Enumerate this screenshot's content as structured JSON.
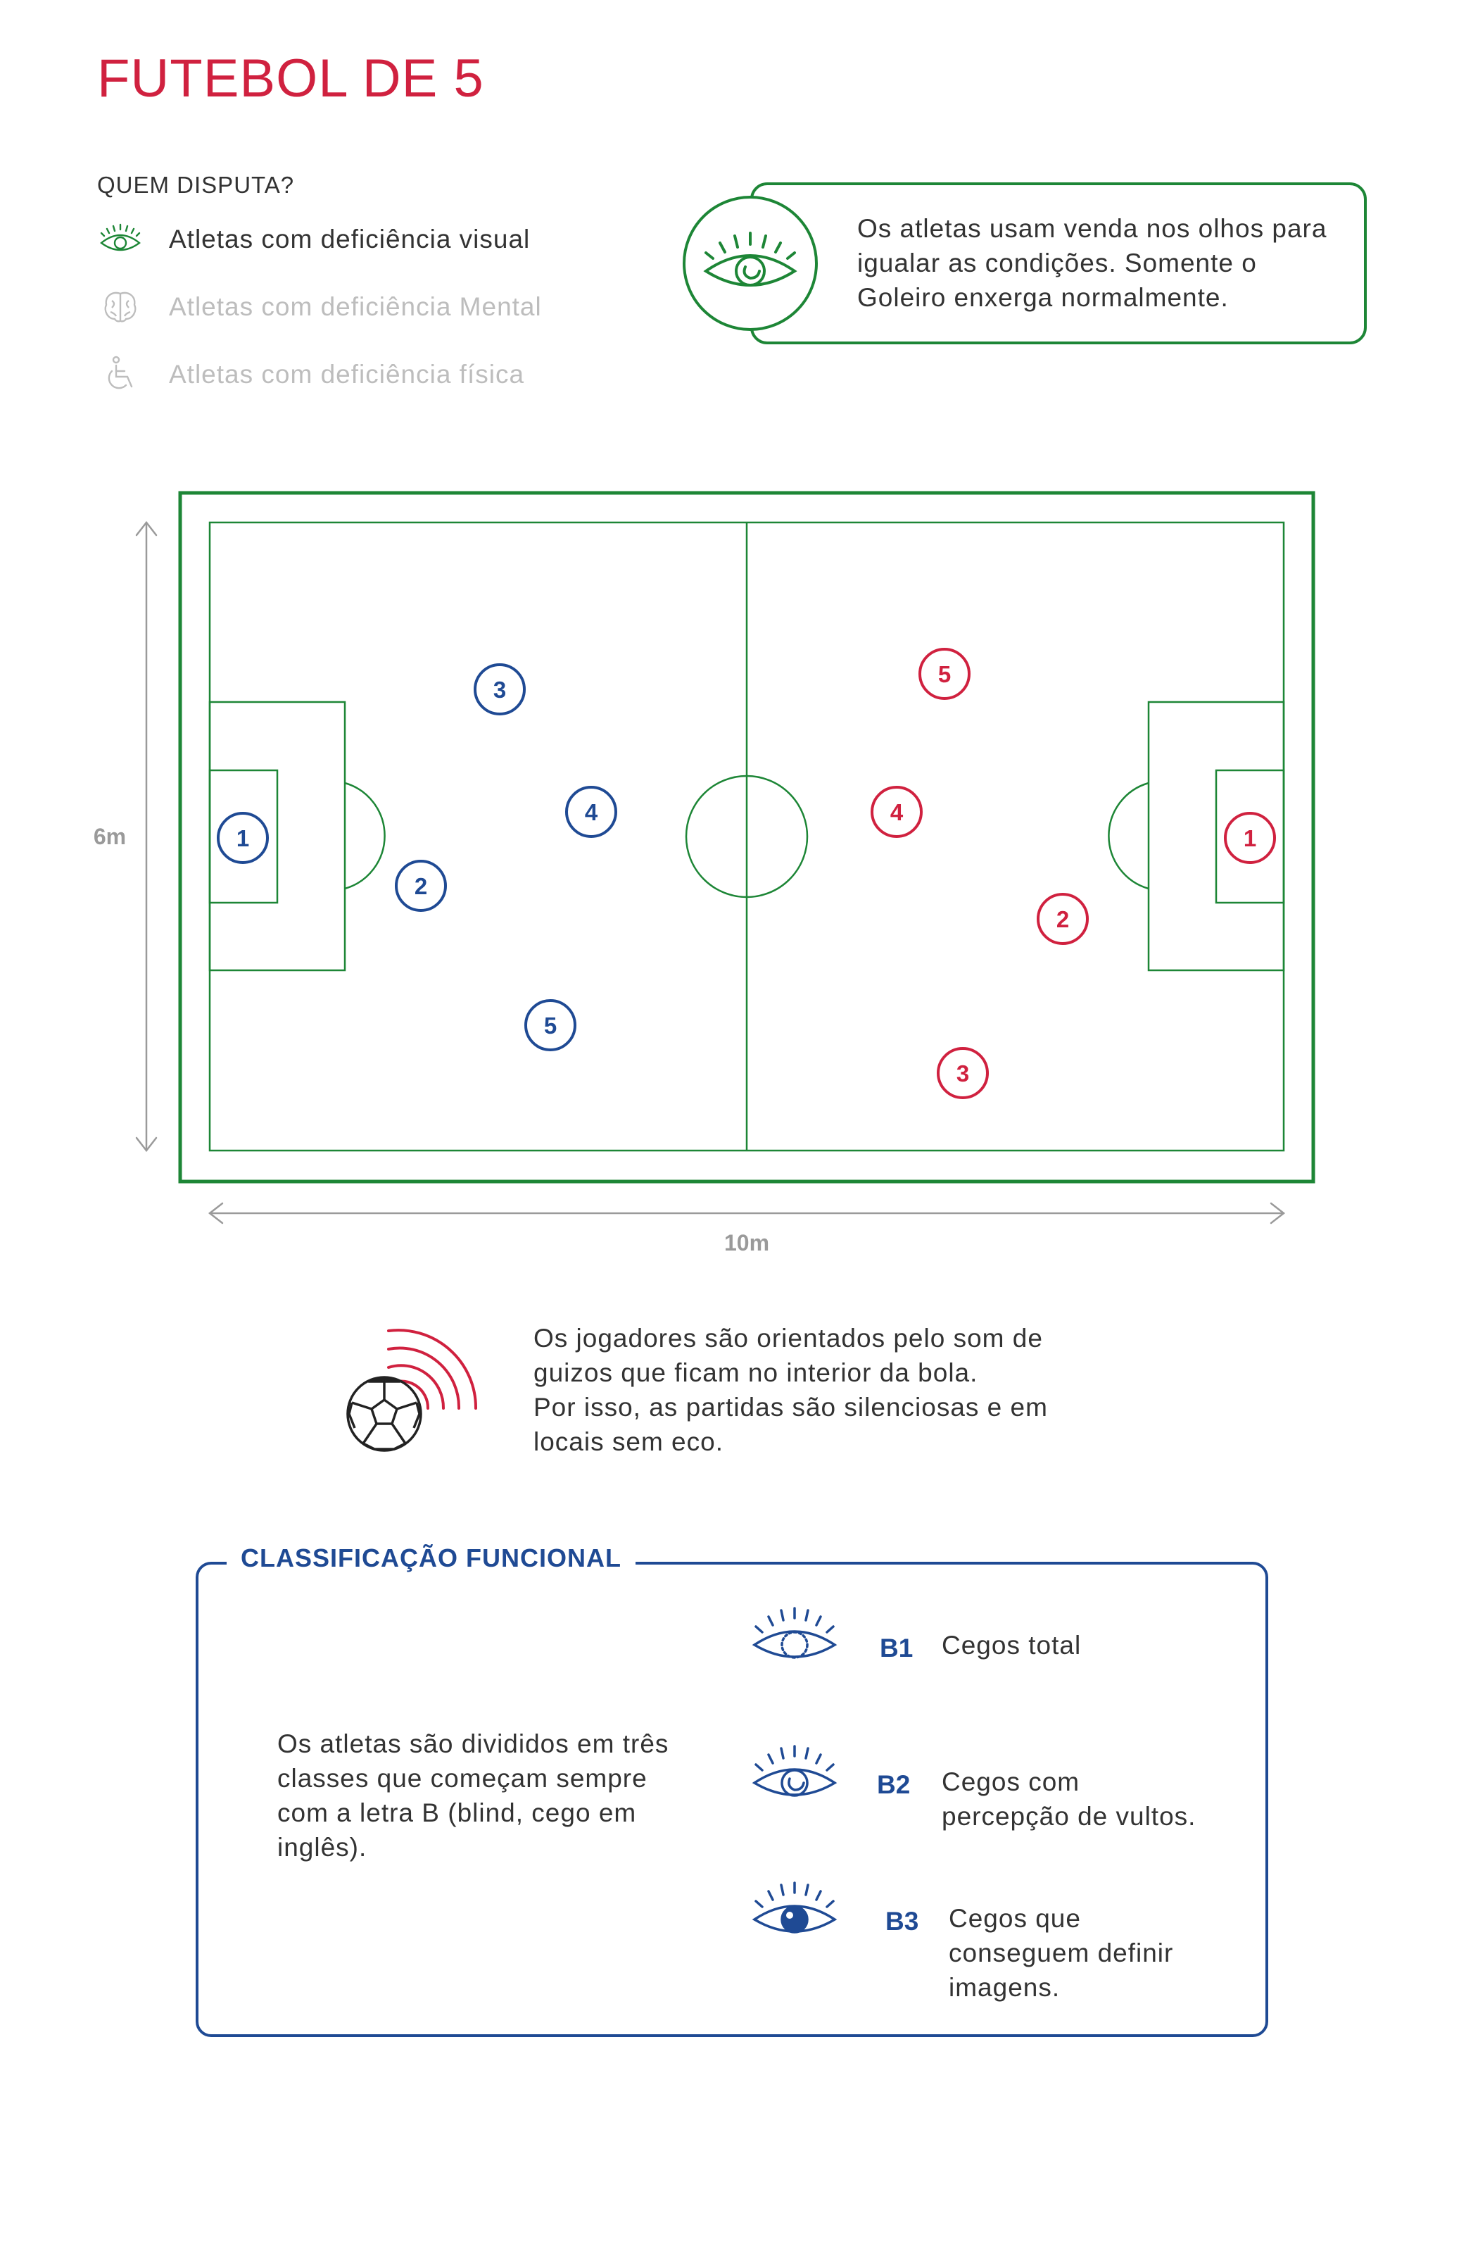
{
  "title": "FUTEBOL DE 5",
  "who": {
    "heading": "QUEM DISPUTA?",
    "categories": [
      {
        "label": "Atletas com deficiência visual",
        "icon": "eye-icon",
        "active": true
      },
      {
        "label": "Atletas com deficiência Mental",
        "icon": "brain-icon",
        "active": false
      },
      {
        "label": "Atletas com deficiência física",
        "icon": "wheelchair-icon",
        "active": false
      }
    ]
  },
  "info": {
    "text": "Os atletas usam venda nos olhos para igualar as condições. Somente o Goleiro enxerga normalmente."
  },
  "field": {
    "height_label": "6m",
    "width_label": "10m",
    "blue_players": [
      "1",
      "2",
      "3",
      "4",
      "5"
    ],
    "red_players": [
      "1",
      "2",
      "3",
      "4",
      "5"
    ]
  },
  "ball": {
    "lines": [
      "Os jogadores são orientados pelo som de",
      "guizos que ficam no interior da bola.",
      "Por isso, as partidas são silenciosas e em",
      "locais sem eco."
    ]
  },
  "classification": {
    "heading": "CLASSIFICAÇÃO FUNCIONAL",
    "description": "Os atletas são divididos em três classes que começam sempre com a letra B (blind, cego em inglês).",
    "classes": [
      {
        "code": "B1",
        "label_lines": [
          "Cegos total"
        ]
      },
      {
        "code": "B2",
        "label_lines": [
          "Cegos com",
          "percepção de vultos."
        ]
      },
      {
        "code": "B3",
        "label_lines": [
          "Cegos que",
          "conseguem definir",
          "imagens."
        ]
      }
    ]
  },
  "colors": {
    "title": "#d0213f",
    "green": "#1d8636",
    "blue": "#1f4a94",
    "red": "#d0213f",
    "muted": "#bdbdbd"
  }
}
